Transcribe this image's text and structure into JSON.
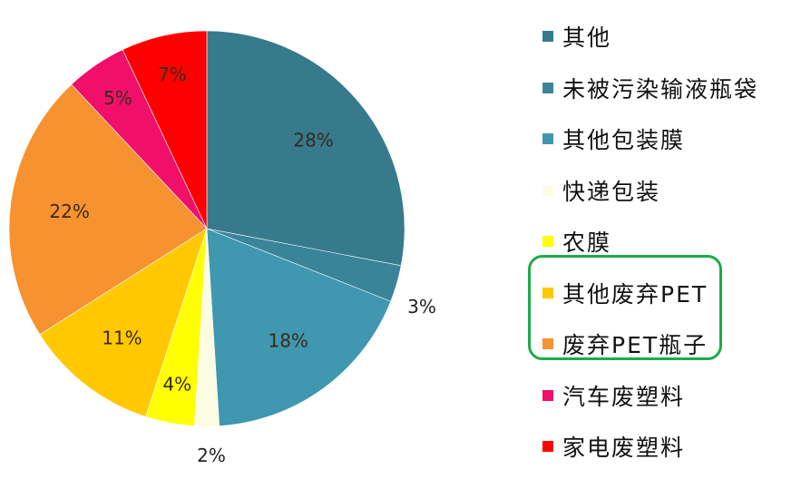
{
  "chart_data": {
    "type": "pie",
    "start": "12 o'clock",
    "direction": "clockwise",
    "legend_position": "right",
    "slices": [
      {
        "label": "其他",
        "value": 28,
        "data_label": "28%",
        "color": "#367a8c"
      },
      {
        "label": "未被污染输液瓶袋",
        "value": 3,
        "data_label": "3%",
        "color": "#3a849a"
      },
      {
        "label": "其他包装膜",
        "value": 18,
        "data_label": "18%",
        "color": "#3f97b0"
      },
      {
        "label": "快递包装",
        "value": 2,
        "data_label": "2%",
        "color": "#fcfce2"
      },
      {
        "label": "农膜",
        "value": 4,
        "data_label": "4%",
        "color": "#ffff00"
      },
      {
        "label": "其他废弃PET",
        "value": 11,
        "data_label": "11%",
        "color": "#ffc800"
      },
      {
        "label": "废弃PET瓶子",
        "value": 22,
        "data_label": "22%",
        "color": "#f79230"
      },
      {
        "label": "汽车废塑料",
        "value": 5,
        "data_label": "5%",
        "color": "#f0106a"
      },
      {
        "label": "家电废塑料",
        "value": 7,
        "data_label": "7%",
        "color": "#ff0000"
      }
    ],
    "highlighted_legend_entries": [
      "其他废弃PET",
      "废弃PET瓶子"
    ],
    "highlight_color": "#1faa4a"
  }
}
